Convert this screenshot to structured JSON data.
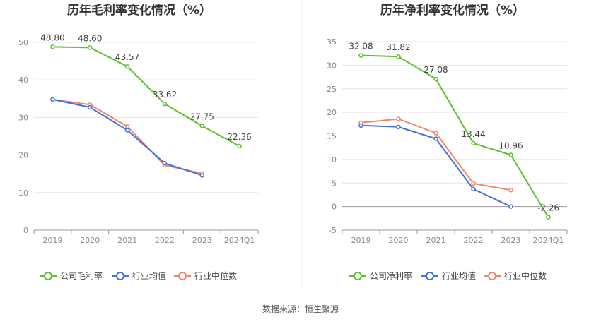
{
  "source_label": "数据来源：恒生聚源",
  "colors": {
    "company": "#5cc12f",
    "avg": "#4472d6",
    "median": "#f0876a",
    "grid": "#e6e6e6",
    "axis": "#999999"
  },
  "chart_data": [
    {
      "type": "line",
      "title": "历年毛利率变化情况（%）",
      "categories": [
        "2019",
        "2020",
        "2021",
        "2022",
        "2023",
        "2024Q1"
      ],
      "ylim": [
        0,
        50
      ],
      "yticks": [
        0,
        10,
        20,
        30,
        40,
        50
      ],
      "grid": true,
      "legend_position": "bottom",
      "series": [
        {
          "name": "公司毛利率",
          "key": "company",
          "values": [
            48.8,
            48.6,
            43.57,
            33.62,
            27.75,
            22.36
          ],
          "labels": [
            "48.80",
            "48.60",
            "43.57",
            "33.62",
            "27.75",
            "22.36"
          ]
        },
        {
          "name": "行业均值",
          "key": "avg",
          "values": [
            34.8,
            32.7,
            26.6,
            17.8,
            14.6,
            null
          ]
        },
        {
          "name": "行业中位数",
          "key": "median",
          "values": [
            34.8,
            33.4,
            27.6,
            17.3,
            15.1,
            null
          ]
        }
      ]
    },
    {
      "type": "line",
      "title": "历年净利率变化情况（%）",
      "categories": [
        "2019",
        "2020",
        "2021",
        "2022",
        "2023",
        "2024Q1"
      ],
      "ylim": [
        -5,
        35
      ],
      "yticks": [
        -5,
        0,
        5,
        10,
        15,
        20,
        25,
        30,
        35
      ],
      "grid": true,
      "legend_position": "bottom",
      "series": [
        {
          "name": "公司净利率",
          "key": "company",
          "values": [
            32.08,
            31.82,
            27.08,
            13.44,
            10.96,
            -2.26
          ],
          "labels": [
            "32.08",
            "31.82",
            "27.08",
            "13.44",
            "10.96",
            "-2.26"
          ]
        },
        {
          "name": "行业均值",
          "key": "avg",
          "values": [
            17.2,
            16.9,
            14.4,
            3.7,
            0.0,
            null
          ]
        },
        {
          "name": "行业中位数",
          "key": "median",
          "values": [
            17.8,
            18.6,
            15.6,
            4.9,
            3.5,
            null
          ]
        }
      ]
    }
  ]
}
